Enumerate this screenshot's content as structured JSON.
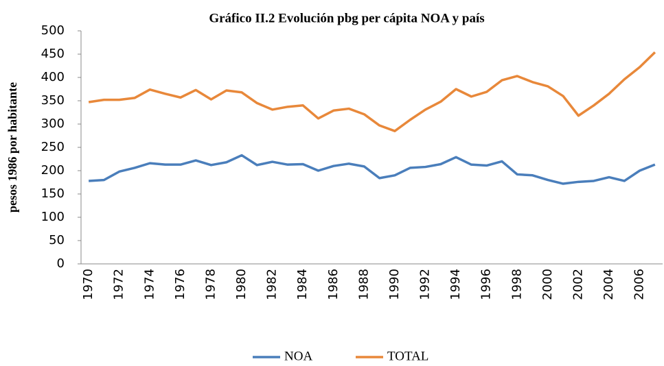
{
  "chart_data": {
    "type": "line",
    "title": "Gráfico II.2 Evolución pbg per cápita NOA y país",
    "y_label": "pesos 1986 por habitante",
    "categories": [
      "1970",
      null,
      "1972",
      null,
      "1974",
      null,
      "1976",
      null,
      "1978",
      null,
      "1980",
      null,
      "1982",
      null,
      "1984",
      null,
      "1986",
      null,
      "1988",
      null,
      "1990",
      null,
      "1992",
      null,
      "1994",
      null,
      "1996",
      null,
      "1998",
      null,
      "2000",
      null,
      "2002",
      null,
      "2004",
      null,
      "2006",
      null
    ],
    "series": [
      {
        "name": "NOA",
        "color": "#4a7ebb",
        "values": [
          178,
          180,
          198,
          206,
          216,
          213,
          213,
          222,
          212,
          218,
          233,
          212,
          219,
          213,
          214,
          200,
          210,
          215,
          209,
          184,
          190,
          206,
          208,
          214,
          229,
          213,
          211,
          220,
          192,
          190,
          180,
          172,
          176,
          178,
          186,
          178,
          200,
          213
        ]
      },
      {
        "name": "TOTAL",
        "color": "#e8883a",
        "values": [
          347,
          352,
          352,
          356,
          374,
          365,
          357,
          373,
          353,
          372,
          368,
          345,
          331,
          337,
          340,
          312,
          329,
          333,
          321,
          297,
          285,
          309,
          331,
          348,
          375,
          359,
          369,
          394,
          403,
          390,
          381,
          360,
          318,
          340,
          365,
          396,
          422,
          454
        ]
      }
    ],
    "ylim": [
      0,
      500
    ],
    "yticks": [
      0,
      50,
      100,
      150,
      200,
      250,
      300,
      350,
      400,
      450,
      500
    ],
    "grid": false,
    "legend": "bottom"
  }
}
